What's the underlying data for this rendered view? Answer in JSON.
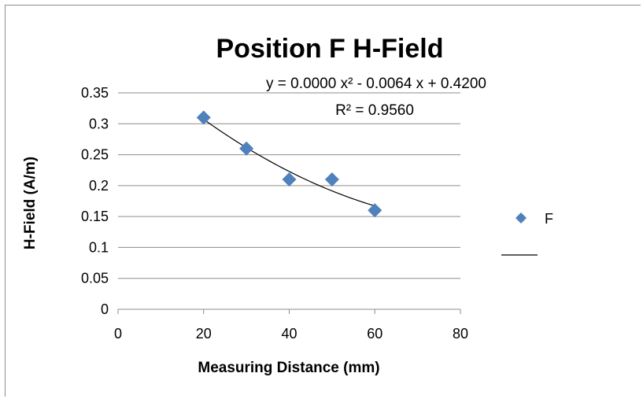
{
  "chart_data": {
    "type": "scatter",
    "title": "Position F H-Field",
    "xlabel": "Measuring Distance (mm)",
    "ylabel": "H-Field (A/m)",
    "xlim": [
      0,
      80
    ],
    "ylim": [
      0,
      0.35
    ],
    "x_ticks": [
      "0",
      "20",
      "40",
      "60",
      "80"
    ],
    "y_ticks": [
      "0",
      "0.05",
      "0.1",
      "0.15",
      "0.2",
      "0.25",
      "0.3",
      "0.35"
    ],
    "grid": "horizontal",
    "series": [
      {
        "name": "F",
        "marker": "diamond",
        "color": "#4f81bd",
        "x": [
          20,
          30,
          40,
          50,
          60
        ],
        "y": [
          0.31,
          0.26,
          0.21,
          0.21,
          0.16
        ]
      }
    ],
    "trendline": {
      "type": "polynomial",
      "color": "#000000",
      "equation_text": "y = 0.0000 x² - 0.0064 x + 0.4200",
      "r2_text": "R² = 0.9560",
      "x_range": [
        20,
        60
      ]
    },
    "legend": {
      "position": "right",
      "entries": [
        "F"
      ]
    }
  }
}
